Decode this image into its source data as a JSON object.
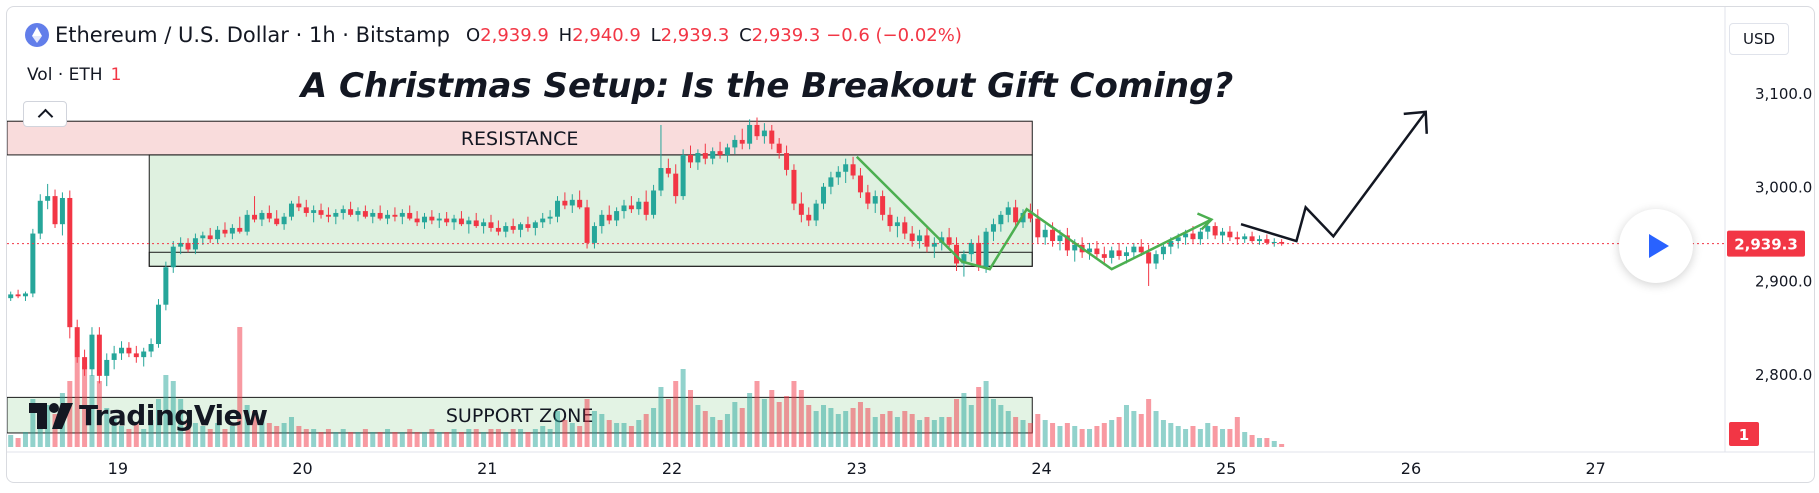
{
  "legend": {
    "symbol": "Ethereum / U.S. Dollar · 1h · Bitstamp",
    "open_key": "O",
    "open": "2,939.9",
    "high_key": "H",
    "high": "2,940.9",
    "low_key": "L",
    "low": "2,939.3",
    "close_key": "C",
    "close": "2,939.3",
    "change": "−0.6 (−0.02%)"
  },
  "volume_legend": {
    "label": "Vol · ETH",
    "value": "1"
  },
  "currency": "USD",
  "brand": "TradingView",
  "colors": {
    "up": "#26a69a",
    "down": "#f23645",
    "zone": "#2e7d32",
    "resistance": "#e57373"
  },
  "chart_data": {
    "type": "candlestick",
    "title": "A Christmas Setup: Is the Breakout Gift Coming?",
    "x_ticks": [
      "19",
      "20",
      "21",
      "22",
      "23",
      "24",
      "25",
      "26",
      "27"
    ],
    "y_ticks": [
      "3,100.0",
      "3,000.0",
      "2,900.0",
      "2,800.0"
    ],
    "ylim": [
      2722,
      3192
    ],
    "xlim": [
      18.4,
      27.7
    ],
    "last_price": 2939.3,
    "last_price_label": "2,939.3",
    "volume_badge": "1",
    "annotations": [
      {
        "label": "RESISTANCE",
        "x0": 18.4,
        "x1": 23.95,
        "y0": 3034,
        "y1": 3070
      },
      {
        "label": "SUPPORT ZONE",
        "x0": 18.4,
        "x1": 23.95,
        "y0": 2737,
        "y1": 2775
      },
      {
        "label": "",
        "x0": 19.17,
        "x1": 23.95,
        "y0": 2915,
        "y1": 3034
      },
      {
        "label": "",
        "x0": 19.17,
        "x1": 23.95,
        "y0": 2915,
        "y1": 2930
      }
    ],
    "path_green": [
      [
        23.0,
        3032
      ],
      [
        23.57,
        2920
      ],
      [
        23.72,
        2912
      ],
      [
        23.92,
        2976
      ],
      [
        24.38,
        2912
      ],
      [
        24.92,
        2965
      ]
    ],
    "path_black": [
      [
        25.08,
        2960
      ],
      [
        25.38,
        2942
      ],
      [
        25.43,
        2978
      ],
      [
        25.58,
        2947
      ],
      [
        26.08,
        3080
      ]
    ],
    "candles_tsv": "18.42,2881,2888,2878,2885,4\n18.46,2885,2890,2881,2883,3\n18.50,2883,2888,2878,2886,5\n18.54,2886,2955,2882,2950,16\n18.58,2950,2992,2944,2985,12\n18.62,2985,3003,2976,2990,14\n18.66,2990,2997,2956,2960,11\n18.70,2960,2994,2948,2988,18\n18.74,2988,2996,2838,2850,22\n18.78,2850,2858,2812,2818,30\n18.82,2818,2826,2798,2805,27\n18.86,2805,2850,2798,2842,24\n18.90,2842,2850,2790,2798,22\n18.94,2798,2822,2787,2815,13\n18.98,2815,2830,2805,2822,10\n19.02,2822,2835,2815,2828,7\n19.06,2828,2834,2818,2822,6\n19.10,2822,2830,2812,2818,8\n19.14,2818,2828,2808,2824,6\n19.18,2824,2838,2818,2832,9\n19.22,2832,2880,2828,2874,16\n19.26,2874,2920,2868,2914,24\n19.30,2914,2942,2908,2936,22\n19.34,2936,2946,2928,2940,16\n19.38,2940,2945,2930,2933,9\n19.42,2933,2950,2928,2945,8\n19.46,2945,2952,2938,2948,7\n19.50,2948,2956,2940,2944,6\n19.54,2944,2958,2940,2954,8\n19.58,2954,2962,2946,2950,6\n19.62,2950,2960,2944,2956,7\n19.66,2956,2968,2950,2952,40\n19.70,2952,2975,2948,2970,14\n19.74,2970,2990,2962,2965,12\n19.78,2965,2975,2958,2972,9\n19.82,2972,2980,2962,2966,8\n19.86,2966,2975,2958,2960,7\n19.90,2960,2972,2954,2968,8\n19.94,2968,2985,2964,2982,10\n19.98,2982,2990,2974,2978,7\n20.02,2978,2986,2968,2972,6\n20.06,2972,2980,2962,2975,6\n20.10,2975,2982,2966,2970,5\n20.14,2970,2978,2962,2968,6\n20.18,2968,2976,2960,2972,5\n20.22,2972,2980,2965,2976,6\n20.26,2976,2984,2968,2970,5\n20.30,2970,2978,2963,2974,5\n20.34,2974,2980,2966,2968,6\n20.38,2968,2976,2961,2972,5\n20.42,2972,2980,2964,2966,5\n20.46,2966,2975,2960,2970,6\n20.50,2970,2978,2963,2968,5\n20.54,2968,2976,2960,2972,5\n20.58,2972,2980,2964,2966,6\n20.62,2966,2974,2958,2962,5\n20.66,2962,2972,2955,2968,5\n20.70,2968,2975,2960,2964,6\n20.74,2964,2972,2956,2966,5\n20.78,2966,2973,2958,2962,5\n20.82,2962,2970,2954,2966,6\n20.86,2966,2974,2958,2960,5\n20.90,2960,2968,2950,2964,6\n20.94,2964,2972,2956,2958,6\n20.98,2958,2966,2950,2962,5\n21.02,2962,2970,2952,2956,6\n21.06,2956,2964,2948,2952,6\n21.10,2952,2962,2946,2958,5\n21.14,2958,2966,2950,2954,6\n21.18,2954,2962,2946,2960,6\n21.22,2960,2968,2952,2956,5\n21.26,2956,2964,2948,2962,6\n21.30,2962,2972,2956,2966,7\n21.34,2966,2975,2960,2968,6\n21.38,2968,2990,2962,2985,12\n21.42,2985,2994,2976,2980,9\n21.46,2980,2992,2972,2986,8\n21.50,2986,2996,2976,2978,7\n21.54,2978,2986,2934,2940,16\n21.58,2940,2962,2934,2958,12\n21.62,2958,2975,2950,2970,11\n21.66,2970,2980,2960,2964,9\n21.70,2964,2978,2958,2974,8\n21.74,2974,2986,2966,2980,8\n21.78,2980,2990,2972,2976,7\n21.82,2976,2988,2970,2984,9\n21.86,2984,2996,2964,2970,11\n21.90,2970,3002,2966,2996,13\n21.94,2996,3066,2990,3020,20\n21.98,3020,3030,3010,3014,16\n22.02,3014,3024,2982,2990,22\n22.06,2990,3040,2986,3034,26\n22.10,3034,3044,3020,3026,19\n22.14,3026,3040,3018,3036,14\n22.18,3036,3046,3024,3030,12\n22.22,3030,3042,3024,3038,10\n22.26,3038,3048,3030,3034,9\n22.30,3034,3046,3026,3042,11\n22.34,3042,3055,3035,3050,15\n22.38,3050,3062,3040,3046,13\n22.42,3046,3072,3040,3066,18\n22.46,3066,3074,3050,3054,22\n22.50,3054,3068,3046,3060,16\n22.54,3060,3066,3040,3046,19\n22.58,3046,3052,3030,3036,15\n22.62,3036,3044,3012,3018,17\n22.66,3018,3024,2975,2982,22\n22.70,2982,2994,2962,2970,19\n22.74,2970,2978,2958,2964,14\n22.78,2964,2986,2958,2982,12\n22.82,2982,3004,2976,3000,14\n22.86,3000,3016,2992,3010,13\n22.90,3010,3022,3002,3016,11\n22.94,3016,3030,3004,3024,12\n22.98,3024,3032,3008,3012,13\n23.02,3012,3020,2988,2994,15\n23.06,2994,3002,2976,2982,13\n23.10,2982,2996,2972,2990,10\n23.14,2990,2996,2964,2970,11\n23.18,2970,2978,2952,2958,12\n23.22,2958,2968,2946,2962,10\n23.26,2962,2968,2944,2950,12\n23.30,2950,2958,2936,2942,11\n23.34,2942,2954,2934,2948,9\n23.38,2948,2956,2930,2936,10\n23.42,2936,2946,2924,2940,9\n23.46,2940,2952,2932,2946,10\n23.50,2946,2956,2934,2938,10\n23.54,2938,2946,2910,2918,16\n23.58,2918,2932,2904,2928,18\n23.62,2928,2944,2920,2940,14\n23.66,2940,2948,2910,2914,20\n23.70,2914,2956,2908,2952,22\n23.74,2952,2966,2942,2960,16\n23.78,2960,2974,2952,2970,14\n23.82,2970,2984,2962,2978,12\n23.86,2978,2986,2958,2962,10\n23.90,2962,2976,2956,2972,9\n23.94,2972,2982,2962,2966,8\n23.98,2966,2976,2940,2946,11\n24.02,2946,2960,2938,2954,9\n24.06,2954,2962,2936,2942,8\n24.10,2942,2954,2932,2948,7\n24.14,2948,2956,2926,2932,8\n24.18,2932,2944,2920,2938,7\n24.22,2938,2946,2924,2930,6\n24.26,2930,2940,2922,2934,6\n24.30,2934,2942,2924,2928,7\n24.34,2928,2936,2916,2924,8\n24.38,2924,2936,2918,2932,9\n24.42,2932,2940,2922,2926,10\n24.46,2926,2936,2918,2930,14\n24.50,2930,2940,2924,2936,12\n24.54,2936,2944,2926,2930,11\n24.58,2930,2938,2894,2918,16\n24.62,2918,2932,2912,2928,12\n24.66,2928,2940,2922,2936,9\n24.70,2936,2946,2928,2942,8\n24.74,2942,2950,2934,2946,7\n24.78,2946,2954,2938,2950,6\n24.82,2950,2958,2940,2944,7\n24.86,2944,2956,2938,2952,6\n24.90,2952,2964,2944,2958,8\n24.94,2958,2962,2944,2948,7\n24.98,2948,2956,2940,2952,6\n25.02,2952,2958,2942,2946,6\n25.06,2946,2952,2938,2944,10\n25.10,2944,2950,2940,2947,5\n25.14,2947,2952,2940,2942,4\n25.18,2942,2948,2938,2944,3\n25.22,2944,2949,2938,2940,3\n25.26,2940,2945,2936,2941,2\n25.30,2941,2944,2937,2939.3,1"
  }
}
